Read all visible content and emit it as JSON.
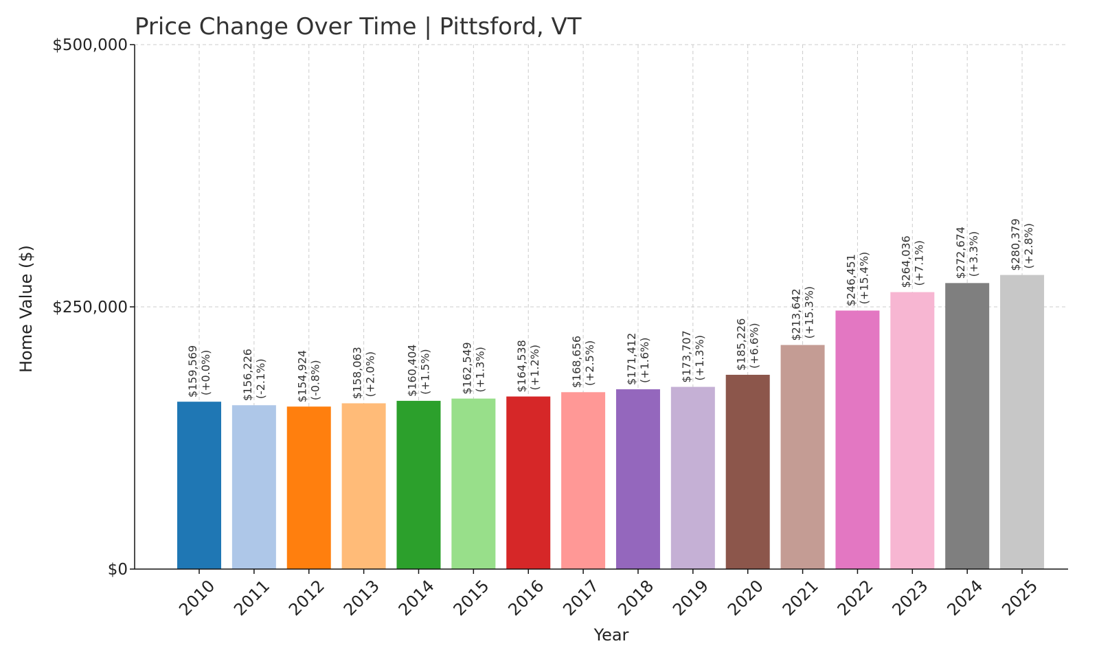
{
  "chart_data": {
    "type": "bar",
    "title": "Price Change Over Time | Pittsford, VT",
    "xlabel": "Year",
    "ylabel": "Home Value ($)",
    "ylim": [
      0,
      500000
    ],
    "yticks": [
      {
        "value": 0,
        "label": "$0"
      },
      {
        "value": 250000,
        "label": "$250,000"
      },
      {
        "value": 500000,
        "label": "$500,000"
      }
    ],
    "grid": true,
    "categories": [
      "2010",
      "2011",
      "2012",
      "2013",
      "2014",
      "2015",
      "2016",
      "2017",
      "2018",
      "2019",
      "2020",
      "2021",
      "2022",
      "2023",
      "2024",
      "2025"
    ],
    "values": [
      159569,
      156226,
      154924,
      158063,
      160404,
      162549,
      164538,
      168656,
      171412,
      173707,
      185226,
      213642,
      246451,
      264036,
      272674,
      280379
    ],
    "value_labels": [
      "$159,569",
      "$156,226",
      "$154,924",
      "$158,063",
      "$160,404",
      "$162,549",
      "$164,538",
      "$168,656",
      "$171,412",
      "$173,707",
      "$185,226",
      "$213,642",
      "$246,451",
      "$264,036",
      "$272,674",
      "$280,379"
    ],
    "change_labels": [
      "(+0.0%)",
      "(-2.1%)",
      "(-0.8%)",
      "(+2.0%)",
      "(+1.5%)",
      "(+1.3%)",
      "(+1.2%)",
      "(+2.5%)",
      "(+1.6%)",
      "(+1.3%)",
      "(+6.6%)",
      "(+15.3%)",
      "(+15.4%)",
      "(+7.1%)",
      "(+3.3%)",
      "(+2.8%)"
    ],
    "colors": [
      "#1f77b4",
      "#aec7e8",
      "#ff7f0e",
      "#ffbb78",
      "#2ca02c",
      "#98df8a",
      "#d62728",
      "#ff9896",
      "#9467bd",
      "#c5b0d5",
      "#8c564b",
      "#c49c94",
      "#e377c2",
      "#f7b6d2",
      "#7f7f7f",
      "#c7c7c7"
    ]
  }
}
